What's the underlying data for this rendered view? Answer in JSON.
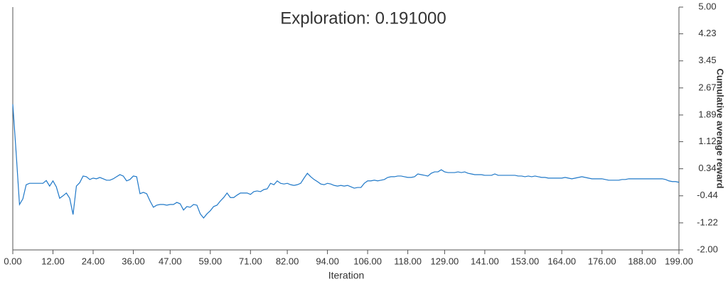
{
  "chart_data": {
    "type": "line",
    "title": "Exploration: 0.191000",
    "x_label": "Iteration",
    "y_label": "Cumulative average reward",
    "x": [
      0,
      1,
      2,
      3,
      4,
      5,
      6,
      7,
      8,
      9,
      10,
      11,
      12,
      13,
      14,
      15,
      16,
      17,
      18,
      19,
      20,
      21,
      22,
      23,
      24,
      25,
      26,
      27,
      28,
      29,
      30,
      31,
      32,
      33,
      34,
      35,
      36,
      37,
      38,
      39,
      40,
      41,
      42,
      43,
      44,
      45,
      46,
      47,
      48,
      49,
      50,
      51,
      52,
      53,
      54,
      55,
      56,
      57,
      58,
      59,
      60,
      61,
      62,
      63,
      64,
      65,
      66,
      67,
      68,
      69,
      70,
      71,
      72,
      73,
      74,
      75,
      76,
      77,
      78,
      79,
      80,
      81,
      82,
      83,
      84,
      85,
      86,
      87,
      88,
      89,
      90,
      91,
      92,
      93,
      94,
      95,
      96,
      97,
      98,
      99,
      100,
      101,
      102,
      103,
      104,
      105,
      106,
      107,
      108,
      109,
      110,
      111,
      112,
      113,
      114,
      115,
      116,
      117,
      118,
      119,
      120,
      121,
      122,
      123,
      124,
      125,
      126,
      127,
      128,
      129,
      130,
      131,
      132,
      133,
      134,
      135,
      136,
      137,
      138,
      139,
      140,
      141,
      142,
      143,
      144,
      145,
      146,
      147,
      148,
      149,
      150,
      151,
      152,
      153,
      154,
      155,
      156,
      157,
      158,
      159,
      160,
      161,
      162,
      163,
      164,
      165,
      166,
      167,
      168,
      169,
      170,
      171,
      172,
      173,
      174,
      175,
      176,
      177,
      178,
      179,
      180,
      181,
      182,
      183,
      184,
      185,
      186,
      187,
      188,
      189,
      190,
      191,
      192,
      193,
      194,
      195,
      196,
      197,
      198,
      199
    ],
    "series": [
      {
        "color": "#1f78c8",
        "values": [
          2.2,
          0.8,
          -0.69,
          -0.53,
          -0.12,
          -0.08,
          -0.08,
          -0.08,
          -0.08,
          -0.08,
          0.0,
          -0.16,
          -0.01,
          -0.18,
          -0.51,
          -0.44,
          -0.36,
          -0.51,
          -0.98,
          -0.16,
          -0.06,
          0.13,
          0.11,
          0.03,
          0.07,
          0.05,
          0.09,
          0.05,
          0.01,
          0.01,
          0.05,
          0.11,
          0.17,
          0.13,
          -0.01,
          0.03,
          0.13,
          0.11,
          -0.38,
          -0.34,
          -0.38,
          -0.59,
          -0.77,
          -0.71,
          -0.69,
          -0.69,
          -0.71,
          -0.69,
          -0.69,
          -0.63,
          -0.67,
          -0.85,
          -0.75,
          -0.77,
          -0.69,
          -0.71,
          -0.96,
          -1.08,
          -0.96,
          -0.87,
          -0.75,
          -0.71,
          -0.59,
          -0.49,
          -0.36,
          -0.49,
          -0.49,
          -0.42,
          -0.36,
          -0.36,
          -0.36,
          -0.4,
          -0.32,
          -0.3,
          -0.32,
          -0.26,
          -0.24,
          -0.08,
          -0.12,
          -0.01,
          -0.08,
          -0.1,
          -0.08,
          -0.12,
          -0.14,
          -0.12,
          -0.08,
          0.07,
          0.21,
          0.11,
          0.03,
          -0.03,
          -0.1,
          -0.12,
          -0.08,
          -0.1,
          -0.14,
          -0.16,
          -0.14,
          -0.16,
          -0.14,
          -0.18,
          -0.22,
          -0.2,
          -0.2,
          -0.08,
          -0.01,
          -0.01,
          0.01,
          -0.01,
          0.01,
          0.03,
          0.09,
          0.11,
          0.11,
          0.13,
          0.13,
          0.11,
          0.09,
          0.09,
          0.11,
          0.19,
          0.17,
          0.15,
          0.13,
          0.21,
          0.25,
          0.25,
          0.31,
          0.25,
          0.23,
          0.23,
          0.23,
          0.25,
          0.23,
          0.25,
          0.21,
          0.19,
          0.17,
          0.17,
          0.17,
          0.15,
          0.15,
          0.15,
          0.19,
          0.15,
          0.15,
          0.15,
          0.15,
          0.15,
          0.15,
          0.13,
          0.13,
          0.11,
          0.13,
          0.11,
          0.13,
          0.11,
          0.09,
          0.09,
          0.07,
          0.07,
          0.07,
          0.07,
          0.07,
          0.09,
          0.07,
          0.05,
          0.07,
          0.09,
          0.11,
          0.09,
          0.07,
          0.05,
          0.05,
          0.05,
          0.05,
          0.03,
          0.01,
          0.01,
          0.01,
          0.01,
          0.03,
          0.03,
          0.05,
          0.05,
          0.05,
          0.05,
          0.05,
          0.05,
          0.05,
          0.05,
          0.05,
          0.05,
          0.05,
          0.03,
          -0.01,
          -0.03,
          -0.03,
          -0.05
        ]
      }
    ],
    "xlim": [
      0,
      199
    ],
    "xticks": [
      {
        "value": 0,
        "label": "0.00"
      },
      {
        "value": 12,
        "label": "12.00"
      },
      {
        "value": 24,
        "label": "24.00"
      },
      {
        "value": 36,
        "label": "36.00"
      },
      {
        "value": 47,
        "label": "47.00"
      },
      {
        "value": 59,
        "label": "59.00"
      },
      {
        "value": 71,
        "label": "71.00"
      },
      {
        "value": 82,
        "label": "82.00"
      },
      {
        "value": 94,
        "label": "94.00"
      },
      {
        "value": 106,
        "label": "106.00"
      },
      {
        "value": 118,
        "label": "118.00"
      },
      {
        "value": 129,
        "label": "129.00"
      },
      {
        "value": 141,
        "label": "141.00"
      },
      {
        "value": 153,
        "label": "153.00"
      },
      {
        "value": 164,
        "label": "164.00"
      },
      {
        "value": 176,
        "label": "176.00"
      },
      {
        "value": 188,
        "label": "188.00"
      },
      {
        "value": 199,
        "label": "199.00"
      }
    ],
    "ylim": [
      -2,
      5
    ],
    "yticks": [
      {
        "value": 5,
        "label": "5.00"
      },
      {
        "value": 4.23,
        "label": "4.23"
      },
      {
        "value": 3.45,
        "label": "3.45"
      },
      {
        "value": 2.67,
        "label": "2.67"
      },
      {
        "value": 1.89,
        "label": "1.89"
      },
      {
        "value": 1.12,
        "label": "1.12"
      },
      {
        "value": 0.34,
        "label": "0.34"
      },
      {
        "value": -0.44,
        "label": "-0.44"
      },
      {
        "value": -1.22,
        "label": "-1.22"
      },
      {
        "value": -2,
        "label": "-2.00"
      }
    ]
  }
}
